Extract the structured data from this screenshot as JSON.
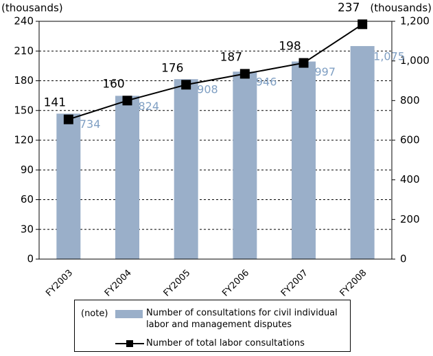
{
  "chart_data": {
    "type": "combo",
    "ylabel": "(thousands)",
    "y2label": "(thousands)",
    "categories": [
      "FY2003",
      "FY2004",
      "FY2005",
      "FY2006",
      "FY2007",
      "FY2008"
    ],
    "series": [
      {
        "name": "Number of consultations for civil individual labor and management disputes",
        "type": "bar",
        "axis": "y2",
        "color": "#9aafc9",
        "label_color": "#7f9fc3",
        "values": [
          734,
          824,
          908,
          946,
          997,
          1075
        ],
        "value_labels": [
          "734",
          "824",
          "908",
          "946",
          "997",
          "1,075"
        ]
      },
      {
        "name": "Number of total labor consultations",
        "type": "line",
        "axis": "y",
        "color": "#000000",
        "label_color": "#000000",
        "values": [
          141,
          160,
          176,
          187,
          198,
          237
        ]
      }
    ],
    "ylim": [
      0,
      240
    ],
    "yticks": [
      0,
      30,
      60,
      90,
      120,
      150,
      180,
      210,
      240
    ],
    "y2lim": [
      0,
      1200
    ],
    "y2ticks": [
      0,
      200,
      400,
      600,
      800,
      {
        "value": 1000,
        "label": "1,000"
      },
      {
        "value": 1200,
        "label": "1,200"
      }
    ],
    "grid": true,
    "legend_note": "(note)",
    "legend_position": "bottom"
  }
}
